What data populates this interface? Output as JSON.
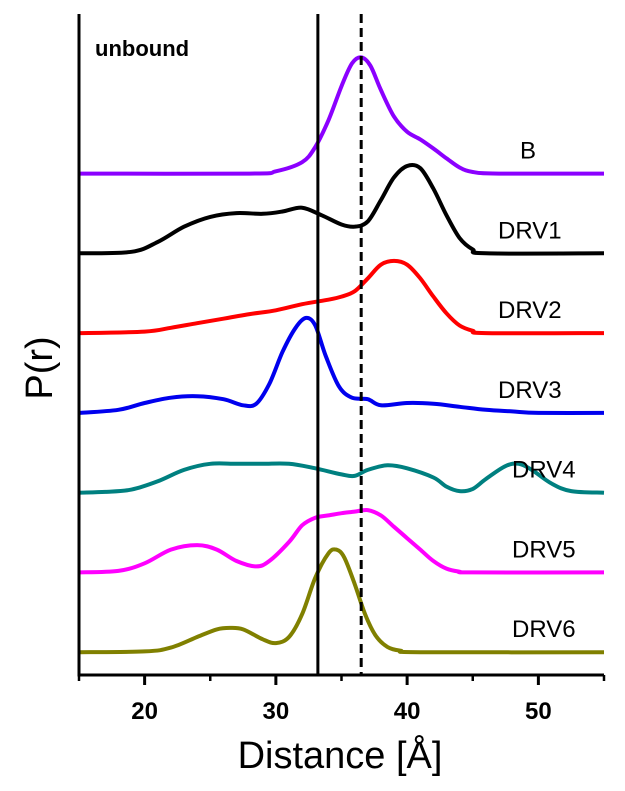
{
  "chart_data": {
    "type": "line",
    "xlabel": "Distance [Å]",
    "ylabel": "P(r)",
    "xlim": [
      15,
      55
    ],
    "x_ticks": [
      "20",
      "30",
      "40",
      "50"
    ],
    "x_tick_values": [
      20,
      30,
      40,
      50
    ],
    "annotation": "unbound",
    "reference_lines": [
      {
        "x": 33.2,
        "style": "solid"
      },
      {
        "x": 36.5,
        "style": "dashed"
      }
    ],
    "series": [
      {
        "name": "B",
        "color": "#8B00FF",
        "offset": 6.6,
        "points": [
          [
            15,
            0
          ],
          [
            28,
            0
          ],
          [
            30,
            0.03
          ],
          [
            32,
            0.15
          ],
          [
            33,
            0.35
          ],
          [
            34,
            0.7
          ],
          [
            35,
            1.15
          ],
          [
            35.8,
            1.45
          ],
          [
            36.5,
            1.53
          ],
          [
            37.2,
            1.42
          ],
          [
            38,
            1.1
          ],
          [
            39,
            0.75
          ],
          [
            40,
            0.55
          ],
          [
            41,
            0.45
          ],
          [
            42,
            0.33
          ],
          [
            43,
            0.2
          ],
          [
            44,
            0.08
          ],
          [
            45,
            0.02
          ],
          [
            47,
            0
          ],
          [
            55,
            0
          ]
        ]
      },
      {
        "name": "DRV1",
        "color": "#000000",
        "offset": 5.55,
        "points": [
          [
            15,
            0
          ],
          [
            19,
            0.02
          ],
          [
            21,
            0.15
          ],
          [
            23,
            0.35
          ],
          [
            25,
            0.48
          ],
          [
            27,
            0.53
          ],
          [
            29,
            0.52
          ],
          [
            30.5,
            0.55
          ],
          [
            32,
            0.6
          ],
          [
            33.5,
            0.5
          ],
          [
            35,
            0.38
          ],
          [
            36,
            0.35
          ],
          [
            37,
            0.42
          ],
          [
            38,
            0.7
          ],
          [
            39,
            1.0
          ],
          [
            40,
            1.15
          ],
          [
            41,
            1.12
          ],
          [
            42,
            0.85
          ],
          [
            43,
            0.5
          ],
          [
            44,
            0.2
          ],
          [
            45,
            0.05
          ],
          [
            46,
            0
          ],
          [
            55,
            0
          ]
        ]
      },
      {
        "name": "DRV2",
        "color": "#FF0000",
        "offset": 4.5,
        "points": [
          [
            15,
            0
          ],
          [
            20,
            0.02
          ],
          [
            22,
            0.07
          ],
          [
            24,
            0.13
          ],
          [
            26,
            0.19
          ],
          [
            28,
            0.25
          ],
          [
            30,
            0.3
          ],
          [
            32,
            0.38
          ],
          [
            34,
            0.44
          ],
          [
            35,
            0.48
          ],
          [
            36,
            0.55
          ],
          [
            37,
            0.72
          ],
          [
            38,
            0.9
          ],
          [
            39,
            0.95
          ],
          [
            40,
            0.9
          ],
          [
            41,
            0.72
          ],
          [
            42,
            0.48
          ],
          [
            43,
            0.26
          ],
          [
            44,
            0.1
          ],
          [
            45,
            0.03
          ],
          [
            46,
            0
          ],
          [
            55,
            0
          ]
        ]
      },
      {
        "name": "DRV3",
        "color": "#0000EE",
        "offset": 3.45,
        "points": [
          [
            15,
            0
          ],
          [
            18,
            0.04
          ],
          [
            20,
            0.13
          ],
          [
            22,
            0.2
          ],
          [
            24,
            0.22
          ],
          [
            26,
            0.18
          ],
          [
            27.5,
            0.1
          ],
          [
            28.5,
            0.12
          ],
          [
            29.5,
            0.38
          ],
          [
            30.5,
            0.8
          ],
          [
            31.5,
            1.12
          ],
          [
            32.3,
            1.25
          ],
          [
            33,
            1.15
          ],
          [
            33.8,
            0.75
          ],
          [
            34.8,
            0.35
          ],
          [
            35.8,
            0.2
          ],
          [
            37,
            0.18
          ],
          [
            38,
            0.1
          ],
          [
            40,
            0.13
          ],
          [
            42,
            0.12
          ],
          [
            44,
            0.08
          ],
          [
            46,
            0.04
          ],
          [
            48,
            0.02
          ],
          [
            50,
            0
          ],
          [
            55,
            0
          ]
        ]
      },
      {
        "name": "DRV4",
        "color": "#008080",
        "offset": 2.4,
        "points": [
          [
            15,
            0
          ],
          [
            17,
            0.01
          ],
          [
            19,
            0.04
          ],
          [
            21,
            0.15
          ],
          [
            23,
            0.3
          ],
          [
            25,
            0.38
          ],
          [
            27,
            0.38
          ],
          [
            29,
            0.38
          ],
          [
            31,
            0.38
          ],
          [
            33,
            0.32
          ],
          [
            35,
            0.24
          ],
          [
            36,
            0.22
          ],
          [
            37,
            0.3
          ],
          [
            38.5,
            0.36
          ],
          [
            40,
            0.32
          ],
          [
            42,
            0.2
          ],
          [
            43,
            0.08
          ],
          [
            44,
            0.02
          ],
          [
            45,
            0.05
          ],
          [
            46,
            0.18
          ],
          [
            47.5,
            0.35
          ],
          [
            48.5,
            0.38
          ],
          [
            49.5,
            0.3
          ],
          [
            51,
            0.12
          ],
          [
            52.5,
            0.02
          ],
          [
            55,
            0
          ]
        ]
      },
      {
        "name": "DRV5",
        "color": "#FF00FF",
        "offset": 1.35,
        "points": [
          [
            15,
            0
          ],
          [
            18,
            0.02
          ],
          [
            20,
            0.12
          ],
          [
            22,
            0.3
          ],
          [
            24,
            0.36
          ],
          [
            25.5,
            0.3
          ],
          [
            27,
            0.15
          ],
          [
            28.5,
            0.08
          ],
          [
            29.5,
            0.15
          ],
          [
            31,
            0.4
          ],
          [
            32,
            0.62
          ],
          [
            33,
            0.72
          ],
          [
            34,
            0.75
          ],
          [
            35,
            0.78
          ],
          [
            36,
            0.8
          ],
          [
            37,
            0.82
          ],
          [
            38,
            0.75
          ],
          [
            39,
            0.6
          ],
          [
            40,
            0.45
          ],
          [
            41,
            0.3
          ],
          [
            42,
            0.15
          ],
          [
            43,
            0.05
          ],
          [
            44,
            0.01
          ],
          [
            45,
            0
          ],
          [
            55,
            0
          ]
        ]
      },
      {
        "name": "DRV6",
        "color": "#808000",
        "offset": 0.3,
        "points": [
          [
            15,
            0
          ],
          [
            20,
            0.01
          ],
          [
            22,
            0.06
          ],
          [
            24,
            0.2
          ],
          [
            25.5,
            0.3
          ],
          [
            26.5,
            0.32
          ],
          [
            27.5,
            0.3
          ],
          [
            29,
            0.17
          ],
          [
            30,
            0.12
          ],
          [
            31,
            0.2
          ],
          [
            32,
            0.5
          ],
          [
            33,
            0.98
          ],
          [
            34,
            1.3
          ],
          [
            34.6,
            1.35
          ],
          [
            35.2,
            1.25
          ],
          [
            36,
            0.9
          ],
          [
            36.8,
            0.5
          ],
          [
            37.6,
            0.22
          ],
          [
            38.5,
            0.07
          ],
          [
            39.5,
            0.02
          ],
          [
            41,
            0
          ],
          [
            55,
            0
          ]
        ]
      }
    ]
  }
}
